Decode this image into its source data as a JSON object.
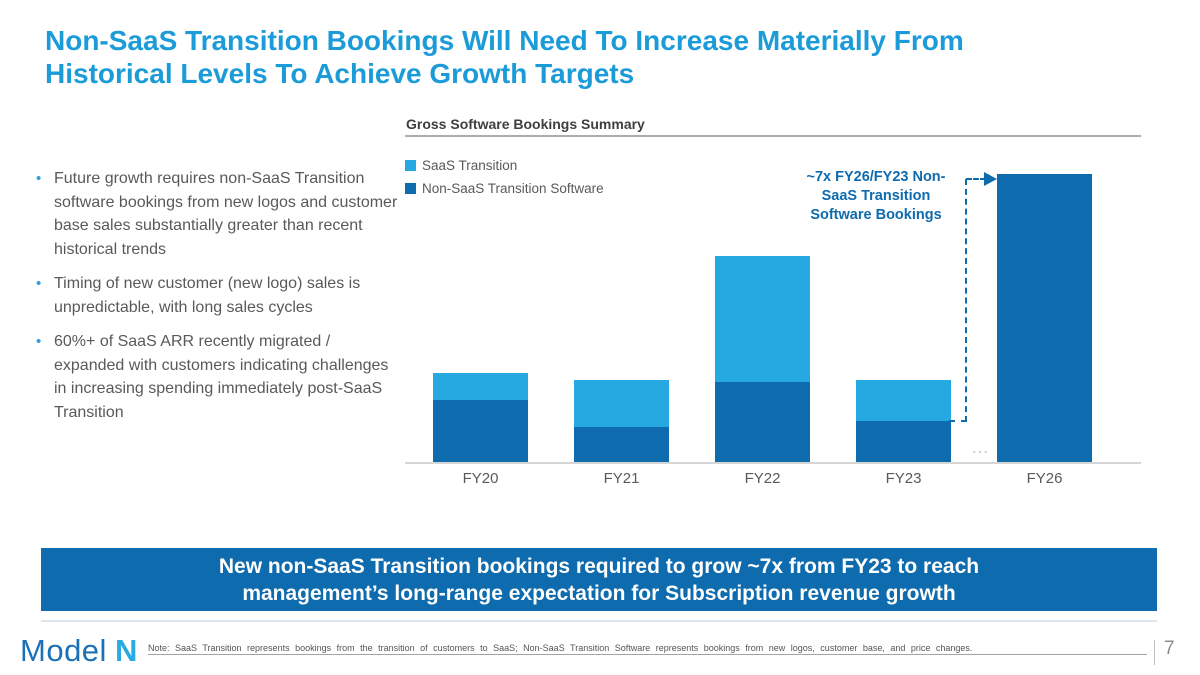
{
  "slide": {
    "title": "Non-SaaS Transition Bookings Will Need To Increase Materially From Historical Levels To Achieve Growth Targets",
    "title_lines": [
      "Non-SaaS Transition Bookings Will Need To Increase Materially From",
      "Historical Levels To Achieve Growth Targets"
    ]
  },
  "bullets": [
    "Future growth requires non-SaaS Transition software bookings from new logos and customer base sales substantially greater than recent historical trends",
    "Timing of new customer (new logo) sales is unpredictable, with long sales cycles",
    "60%+ of SaaS ARR recently migrated / expanded with customers indicating challenges in increasing spending immediately post-SaaS Transition"
  ],
  "chart": {
    "header": "Gross Software Bookings Summary",
    "legend": [
      {
        "label": "SaaS Transition",
        "color": "#26A8E0"
      },
      {
        "label": "Non-SaaS Transition Software",
        "color": "#0E6BAE"
      }
    ],
    "annotation_lines": [
      "~7x FY26/FY23 Non-",
      "SaaS Transition",
      "Software Bookings"
    ],
    "axis_gap_ellipsis": "..."
  },
  "chart_data": {
    "type": "bar",
    "stacked": true,
    "title": "Gross Software Bookings Summary",
    "categories": [
      "FY20",
      "FY21",
      "FY22",
      "FY23",
      "FY26"
    ],
    "series": [
      {
        "name": "Non-SaaS Transition Software",
        "color": "#0E6BAE",
        "values": [
          1.5,
          0.85,
          1.95,
          1.0,
          7.0
        ]
      },
      {
        "name": "SaaS Transition",
        "color": "#26A8E0",
        "values": [
          0.65,
          1.15,
          3.05,
          1.0,
          0
        ]
      }
    ],
    "value_units": "relative units estimated from bar heights (FY23 Non-SaaS Transition Software = 1.0)",
    "y_axis_visible": false,
    "grid": false,
    "legend_position": "top-left",
    "annotations": [
      "~7x FY26/FY23 Non-SaaS Transition Software Bookings"
    ],
    "x_axis_break_between": [
      "FY23",
      "FY26"
    ]
  },
  "banner": {
    "lines": [
      "New non-SaaS Transition bookings required to grow ~7x from FY23 to reach",
      "management’s long-range expectation for Subscription revenue growth"
    ],
    "bg_color": "#0E6BAE"
  },
  "footer": {
    "logo_word": "Model",
    "logo_letter": "N",
    "note": "Note: SaaS Transition represents bookings from the transition of customers to SaaS; Non-SaaS Transition Software represents bookings from new logos, customer base, and price changes.",
    "page_number": "7"
  },
  "colors": {
    "title": "#1B9CD8",
    "body_text": "#58595B",
    "saas_light_blue": "#26A8E0",
    "non_saas_dark_blue": "#0E6BAE",
    "banner_bg": "#0E6BAE",
    "banner_text": "#FFFFFF",
    "axis_gray": "#D6D6D6",
    "logo_model_blue": "#1C70B6",
    "logo_n_cyan": "#29ABE2"
  }
}
